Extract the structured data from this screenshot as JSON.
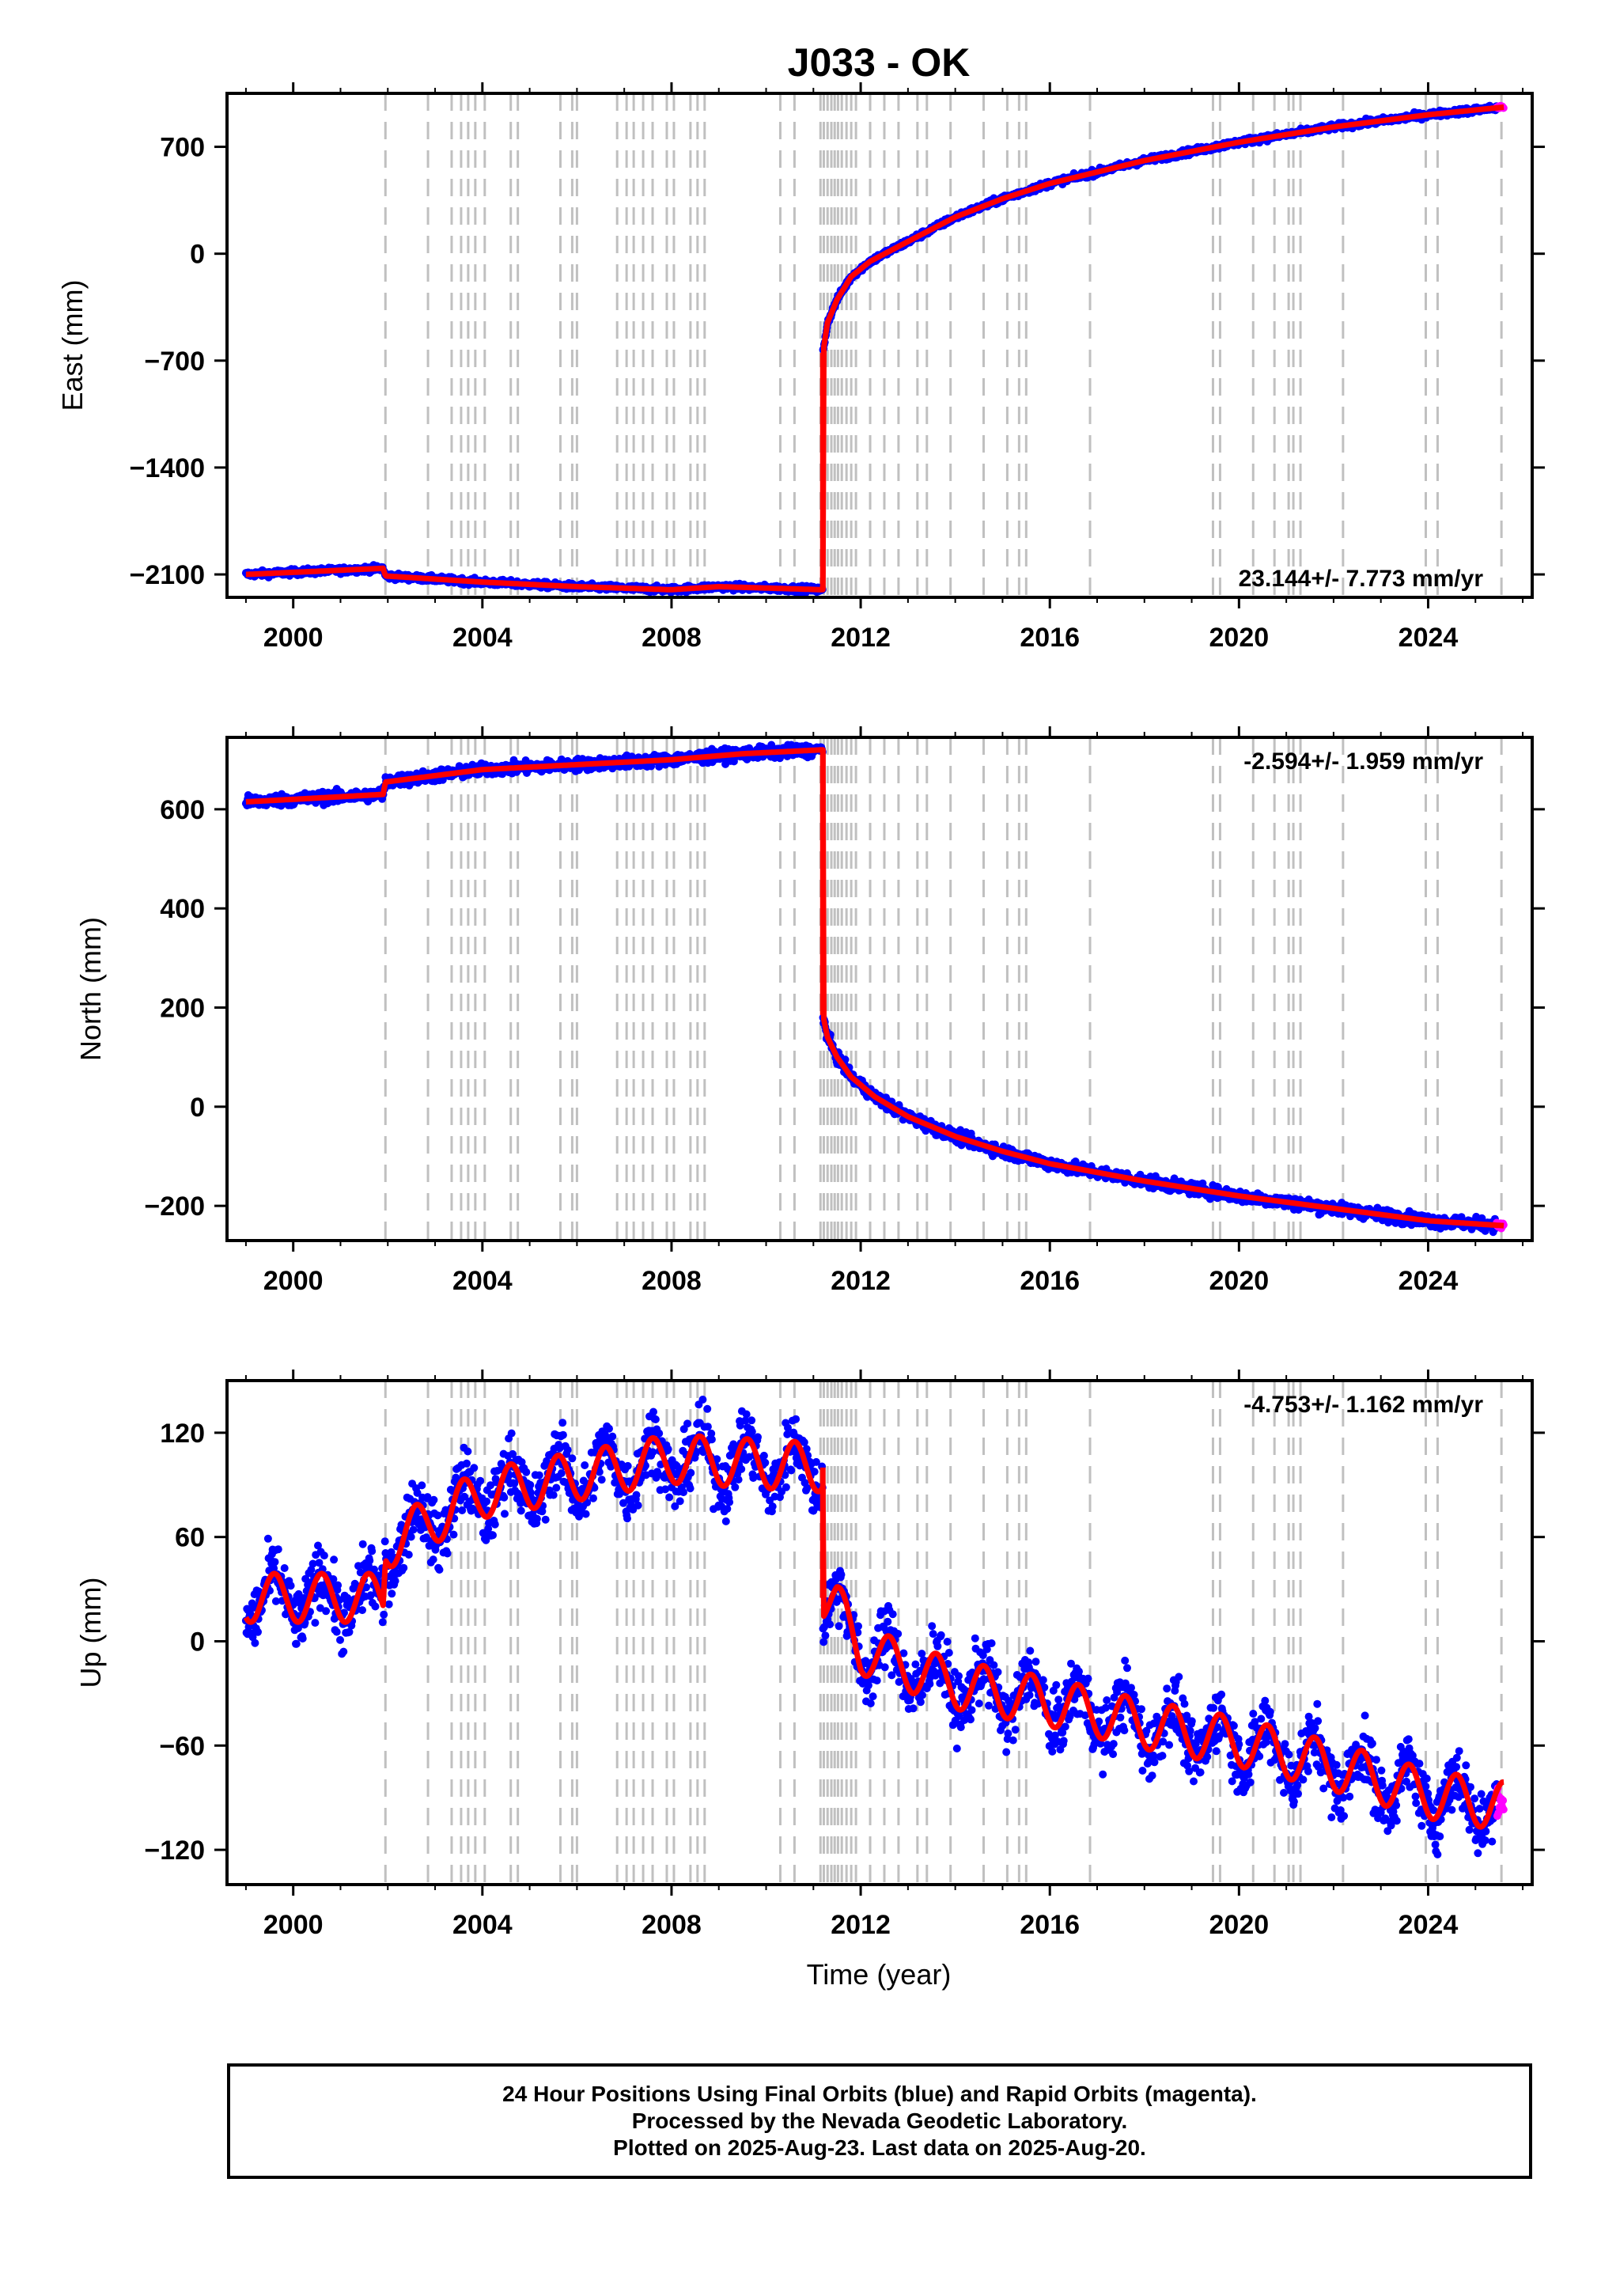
{
  "chart_data": {
    "title": "J033 - OK",
    "type": "scatter",
    "x_range": [
      1998.6,
      2026.2
    ],
    "x_ticks": [
      2000,
      2004,
      2008,
      2012,
      2016,
      2020,
      2024
    ],
    "xlabel": "Time (year)",
    "series_colors": {
      "final": "#0000ff",
      "rapid": "#ff00ff",
      "model": "#ff0000",
      "events": "#c0c0c0"
    },
    "event_lines": [
      2001.95,
      2002.85,
      2003.35,
      2003.55,
      2003.7,
      2003.85,
      2004.05,
      2004.6,
      2004.75,
      2005.65,
      2005.9,
      2006.0,
      2006.85,
      2007.05,
      2007.2,
      2007.4,
      2007.6,
      2007.9,
      2008.05,
      2008.4,
      2008.55,
      2008.7,
      2010.3,
      2010.6,
      2011.15,
      2011.22,
      2011.3,
      2011.38,
      2011.45,
      2011.52,
      2011.6,
      2011.7,
      2011.8,
      2011.9,
      2012.2,
      2012.5,
      2012.8,
      2013.2,
      2013.4,
      2013.9,
      2014.6,
      2015.1,
      2015.35,
      2015.5,
      2016.85,
      2019.45,
      2019.6,
      2020.3,
      2020.75,
      2021.05,
      2021.15,
      2021.3,
      2022.2,
      2023.95,
      2024.2,
      2025.55
    ],
    "panels": [
      {
        "ylabel": "East (mm)",
        "ylim": [
          -2250,
          1050
        ],
        "yticks": [
          700,
          0,
          -700,
          -1400,
          -2100
        ],
        "ytick_labels": [
          "700",
          "0",
          "−700",
          "−1400",
          "−2100"
        ],
        "rate": "23.144+/- 7.773 mm/yr",
        "rate_position": "bottom-right",
        "model": {
          "x": [
            1999.0,
            2001.9,
            2001.95,
            2004,
            2006,
            2008,
            2009,
            2011.2,
            2011.2,
            2011.3,
            2011.5,
            2011.8,
            2012.2,
            2013,
            2014,
            2015,
            2016,
            2018,
            2020,
            2022,
            2024,
            2025.6
          ],
          "y": [
            -2100,
            -2060,
            -2110,
            -2150,
            -2180,
            -2200,
            -2180,
            -2200,
            -650,
            -450,
            -300,
            -150,
            -50,
            80,
            240,
            360,
            460,
            610,
            730,
            830,
            910,
            960
          ]
        },
        "noise": 10,
        "rapid": {
          "x": [
            2025.45,
            2025.6
          ],
          "y": [
            958,
            962
          ]
        }
      },
      {
        "ylabel": "North (mm)",
        "ylim": [
          -270,
          745
        ],
        "yticks": [
          600,
          400,
          200,
          0,
          -200
        ],
        "ytick_labels": [
          "600",
          "400",
          "200",
          "0",
          "−200"
        ],
        "rate": "-2.594+/- 1.959 mm/yr",
        "rate_position": "top-right",
        "model": {
          "x": [
            1999.0,
            2000,
            2001.9,
            2001.95,
            2004,
            2006,
            2008,
            2009.5,
            2011.2,
            2011.2,
            2011.3,
            2011.5,
            2011.8,
            2012.3,
            2013,
            2014,
            2015,
            2016,
            2018,
            2020,
            2022,
            2024,
            2025.6
          ],
          "y": [
            615,
            620,
            630,
            655,
            680,
            690,
            700,
            712,
            720,
            185,
            140,
            100,
            60,
            20,
            -20,
            -60,
            -90,
            -115,
            -150,
            -180,
            -205,
            -230,
            -240
          ]
        },
        "noise": 6,
        "rapid": {
          "x": [
            2025.45,
            2025.6
          ],
          "y": [
            -238,
            -242
          ]
        }
      },
      {
        "ylabel": "Up (mm)",
        "ylim": [
          -140,
          150
        ],
        "yticks": [
          120,
          60,
          0,
          -60,
          -120
        ],
        "ytick_labels": [
          "120",
          "60",
          "0",
          "−60",
          "−120"
        ],
        "rate": "-4.753+/- 1.162 mm/yr",
        "rate_position": "top-right",
        "model": {
          "x": [
            1999.0,
            2001.9,
            2001.95,
            2004,
            2006,
            2008,
            2011.2,
            2011.2,
            2011.5,
            2012,
            2014,
            2016,
            2018,
            2020,
            2022,
            2024,
            2025.6
          ],
          "y": [
            25,
            25,
            55,
            85,
            95,
            105,
            100,
            25,
            20,
            -5,
            -25,
            -35,
            -48,
            -58,
            -72,
            -88,
            -95
          ]
        },
        "seasonal_amplitude": 14,
        "noise": 9,
        "rapid": {
          "x": [
            2025.45,
            2025.6
          ],
          "y": [
            -88,
            -96
          ]
        }
      }
    ]
  },
  "footer": {
    "line1": "24 Hour Positions Using Final Orbits (blue) and Rapid Orbits (magenta).",
    "line2": "Processed by the Nevada Geodetic Laboratory.",
    "line3": "Plotted on 2025-Aug-23. Last data on 2025-Aug-20."
  }
}
